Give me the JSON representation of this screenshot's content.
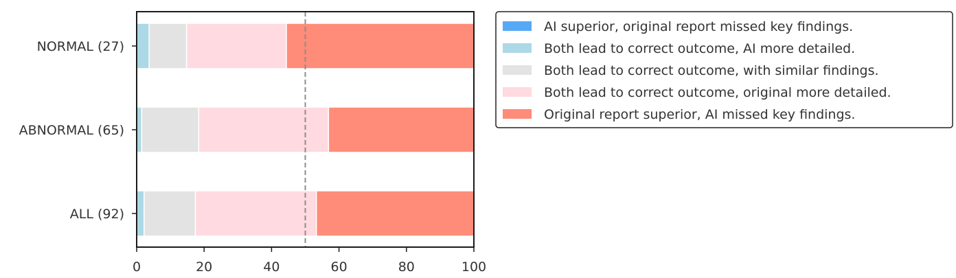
{
  "chart_data": {
    "type": "bar",
    "orientation": "horizontal",
    "stacked": true,
    "categories": [
      "NORMAL (27)",
      "ABNORMAL (65)",
      "ALL (92)"
    ],
    "series": [
      {
        "name": "AI superior, original report missed key findings.",
        "color": "#56aaf5",
        "values": [
          0,
          0,
          0
        ]
      },
      {
        "name": "Both lead to correct outcome, AI more detailed.",
        "color": "#add8e6",
        "values": [
          3.7,
          1.5,
          2.2
        ]
      },
      {
        "name": "Both lead to correct outcome, with similar findings.",
        "color": "#e3e3e3",
        "values": [
          11.1,
          16.9,
          15.2
        ]
      },
      {
        "name": "Both lead to correct outcome, original more detailed.",
        "color": "#ffdae0",
        "values": [
          29.6,
          38.5,
          35.9
        ]
      },
      {
        "name": "Original report superior, AI missed key findings.",
        "color": "#fe8c78",
        "values": [
          55.6,
          43.1,
          46.7
        ]
      }
    ],
    "xlim": [
      0,
      100
    ],
    "xticks": [
      "0",
      "20",
      "40",
      "60",
      "80",
      "100"
    ],
    "reference_line": 50,
    "legend_position": "outside right, top",
    "grid": false
  }
}
